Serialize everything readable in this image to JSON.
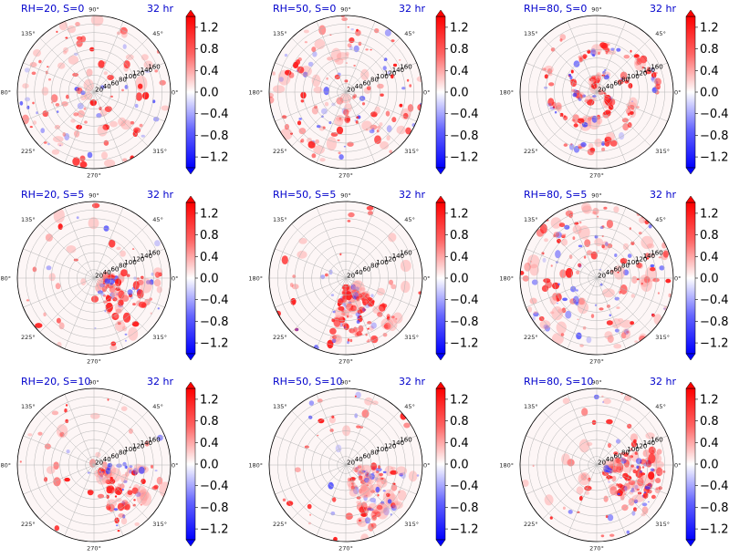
{
  "figure": {
    "time_label": "32 hr",
    "angle_labels": [
      "0°",
      "45°",
      "90°",
      "135°",
      "180°",
      "225°",
      "270°",
      "315°"
    ],
    "radial_ticks": [
      "20",
      "40",
      "60",
      "80",
      "100",
      "120",
      "140",
      "160"
    ],
    "colorbar_ticks": [
      "1.2",
      "0.8",
      "0.4",
      "0.0",
      "−0.4",
      "−0.8",
      "−1.2"
    ],
    "colormap": {
      "negative": "#0000ff",
      "zero": "#ffffff",
      "positive": "#ff0000"
    }
  },
  "chart_data": [
    {
      "type": "heatmap",
      "projection": "polar",
      "title": "RH=20, S=0",
      "time": "32 hr",
      "colorbar_range": [
        -1.4,
        1.4
      ],
      "rmax": 160,
      "pattern": "scattered convective cells across whole domain",
      "dominant_sector_deg": null
    },
    {
      "type": "heatmap",
      "projection": "polar",
      "title": "RH=50, S=0",
      "time": "32 hr",
      "colorbar_range": [
        -1.4,
        1.4
      ],
      "rmax": 160,
      "pattern": "scattered cells, denser near center",
      "dominant_sector_deg": null
    },
    {
      "type": "heatmap",
      "projection": "polar",
      "title": "RH=80, S=0",
      "time": "32 hr",
      "colorbar_range": [
        -1.4,
        1.4
      ],
      "rmax": 160,
      "pattern": "organized spiral bands around center",
      "dominant_sector_deg": null
    },
    {
      "type": "heatmap",
      "projection": "polar",
      "title": "RH=20, S=5",
      "time": "32 hr",
      "colorbar_range": [
        -1.4,
        1.4
      ],
      "rmax": 160,
      "pattern": "cells concentrated to the southeast",
      "dominant_sector_deg": 330
    },
    {
      "type": "heatmap",
      "projection": "polar",
      "title": "RH=50, S=5",
      "time": "32 hr",
      "colorbar_range": [
        -1.4,
        1.4
      ],
      "rmax": 160,
      "pattern": "band from center toward south-southwest",
      "dominant_sector_deg": 290
    },
    {
      "type": "heatmap",
      "projection": "polar",
      "title": "RH=80, S=5",
      "time": "32 hr",
      "colorbar_range": [
        -1.4,
        1.4
      ],
      "rmax": 160,
      "pattern": "spiral bands with asymmetry",
      "dominant_sector_deg": null
    },
    {
      "type": "heatmap",
      "projection": "polar",
      "title": "RH=20, S=10",
      "time": "32 hr",
      "colorbar_range": [
        -1.4,
        1.4
      ],
      "rmax": 160,
      "pattern": "dense cluster in southeast quadrant",
      "dominant_sector_deg": 325
    },
    {
      "type": "heatmap",
      "projection": "polar",
      "title": "RH=50, S=10",
      "time": "32 hr",
      "colorbar_range": [
        -1.4,
        1.4
      ],
      "rmax": 160,
      "pattern": "strong cluster southeast of center",
      "dominant_sector_deg": 320
    },
    {
      "type": "heatmap",
      "projection": "polar",
      "title": "RH=80, S=10",
      "time": "32 hr",
      "colorbar_range": [
        -1.4,
        1.4
      ],
      "rmax": 160,
      "pattern": "broad cluster east-southeast of center",
      "dominant_sector_deg": 340
    }
  ]
}
